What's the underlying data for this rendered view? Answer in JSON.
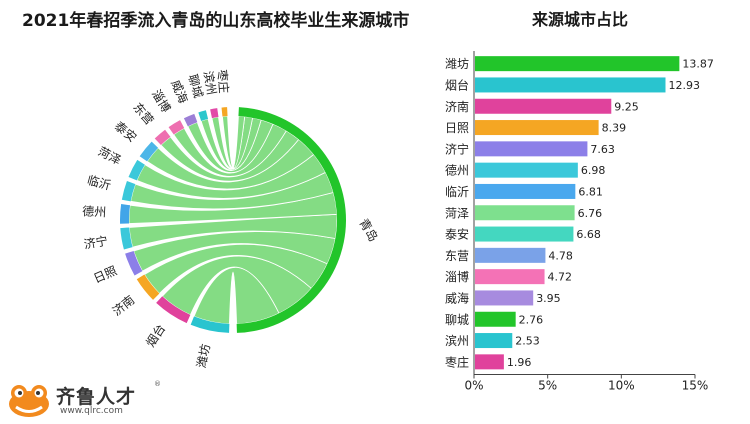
{
  "chart_data": [
    {
      "type": "chord",
      "title": "2021年春招季流入青岛的山东高校毕业生来源城市",
      "target": "青岛",
      "sources": [
        {
          "name": "潍坊",
          "value": 13.87,
          "color": "#29c4cf"
        },
        {
          "name": "烟台",
          "value": 12.93,
          "color": "#e0429c"
        },
        {
          "name": "济南",
          "value": 9.25,
          "color": "#f5a623"
        },
        {
          "name": "日照",
          "value": 8.39,
          "color": "#8c7fe8"
        },
        {
          "name": "济宁",
          "value": 7.63,
          "color": "#3bc8da"
        },
        {
          "name": "德州",
          "value": 6.98,
          "color": "#42a5e8"
        },
        {
          "name": "临沂",
          "value": 6.81,
          "color": "#3bc8da"
        },
        {
          "name": "菏泽",
          "value": 6.76,
          "color": "#3bc8da"
        },
        {
          "name": "泰安",
          "value": 6.68,
          "color": "#4db6e8"
        },
        {
          "name": "东营",
          "value": 4.78,
          "color": "#ee6fb0"
        },
        {
          "name": "淄博",
          "value": 4.72,
          "color": "#ee6fb0"
        },
        {
          "name": "威海",
          "value": 3.95,
          "color": "#9c7fd6"
        },
        {
          "name": "聊城",
          "value": 2.76,
          "color": "#2bc7cc"
        },
        {
          "name": "滨州",
          "value": 2.53,
          "color": "#e24aa8"
        },
        {
          "name": "枣庄",
          "value": 1.96,
          "color": "#f5a623"
        }
      ],
      "target_color": "#22c52a",
      "ribbon_color": "#6ed66e"
    },
    {
      "type": "bar",
      "orientation": "horizontal",
      "title": "来源城市占比",
      "categories": [
        "潍坊",
        "烟台",
        "济南",
        "日照",
        "济宁",
        "德州",
        "临沂",
        "菏泽",
        "泰安",
        "东营",
        "淄博",
        "威海",
        "聊城",
        "滨州",
        "枣庄"
      ],
      "values": [
        13.87,
        12.93,
        9.25,
        8.39,
        7.63,
        6.98,
        6.81,
        6.76,
        6.68,
        4.78,
        4.72,
        3.95,
        2.76,
        2.53,
        1.96
      ],
      "value_labels": [
        "13.87",
        "12.93",
        "9.25",
        "8.39",
        "7.63",
        "6.98",
        "6.81",
        "6.76",
        "6.68",
        "4.78",
        "4.72",
        "3.95",
        "2.76",
        "2.53",
        "1.96"
      ],
      "colors": [
        "#22c52a",
        "#29c4cf",
        "#e0429c",
        "#f5a623",
        "#8c7fe8",
        "#3bc8da",
        "#4aa8ee",
        "#7ee08e",
        "#44d7c0",
        "#7aa2e8",
        "#f472b6",
        "#a78bdf",
        "#22c52a",
        "#29c4cf",
        "#e0429c"
      ],
      "xlim": [
        0,
        15
      ],
      "xticks": [
        0,
        5,
        10,
        15
      ],
      "xtick_labels": [
        "0%",
        "5%",
        "10%",
        "15%"
      ],
      "grid": false
    }
  ],
  "logo": {
    "brand": "齐鲁人才",
    "url": "www.qlrc.com",
    "reg": "®"
  }
}
